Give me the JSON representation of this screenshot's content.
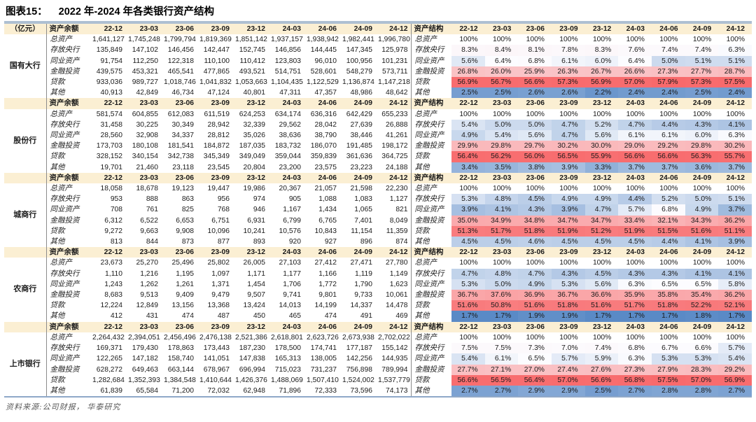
{
  "title_prefix": "图表15：",
  "title_text": "2022 年-2024 年各类银行资产结构",
  "unit_label": "（亿元）",
  "balance_header": "资产余额",
  "structure_header": "资产结构",
  "periods": [
    "22-12",
    "23-03",
    "23-06",
    "23-09",
    "23-12",
    "24-03",
    "24-06",
    "24-09",
    "24-12"
  ],
  "row_labels": [
    "总资产",
    "存放央行",
    "同业资产",
    "金融投资",
    "贷款",
    "其他"
  ],
  "footer": "资料来源:公司财报， 华泰研究",
  "colors": {
    "heat_min_blue": "#5A8AC6",
    "heat_mid_white": "#FCFCFF",
    "heat_max_red": "#F8696B",
    "header_bg": "#FBEFD3",
    "title_bar": "#AEC0D2",
    "bottom_line": "#8FA8C8"
  },
  "groups": [
    {
      "name": "国有大行",
      "balances": [
        [
          "1,641,127",
          "1,745,248",
          "1,799,794",
          "1,819,369",
          "1,851,142",
          "1,937,157",
          "1,938,942",
          "1,982,441",
          "1,996,780"
        ],
        [
          "135,849",
          "147,102",
          "146,456",
          "142,447",
          "152,745",
          "146,856",
          "144,445",
          "147,345",
          "125,978"
        ],
        [
          "91,754",
          "112,250",
          "122,318",
          "110,100",
          "110,412",
          "123,803",
          "96,010",
          "100,956",
          "101,231"
        ],
        [
          "439,575",
          "453,321",
          "465,541",
          "477,865",
          "493,521",
          "514,751",
          "528,601",
          "548,279",
          "573,711"
        ],
        [
          "933,036",
          "989,727",
          "1,018,746",
          "1,041,832",
          "1,053,663",
          "1,104,435",
          "1,122,529",
          "1,136,874",
          "1,147,218"
        ],
        [
          "40,913",
          "42,849",
          "46,734",
          "47,124",
          "40,801",
          "47,311",
          "47,357",
          "48,986",
          "48,642"
        ]
      ],
      "structure": [
        [
          100,
          100,
          100,
          100,
          100,
          100,
          100,
          100,
          100
        ],
        [
          8.3,
          8.4,
          8.1,
          7.8,
          8.3,
          7.6,
          7.4,
          7.4,
          6.3
        ],
        [
          5.6,
          6.4,
          6.8,
          6.1,
          6.0,
          6.4,
          5.0,
          5.1,
          5.1
        ],
        [
          26.8,
          26.0,
          25.9,
          26.3,
          26.7,
          26.6,
          27.3,
          27.7,
          28.7
        ],
        [
          56.9,
          56.7,
          56.6,
          57.3,
          56.9,
          57.0,
          57.9,
          57.3,
          57.5
        ],
        [
          2.5,
          2.5,
          2.6,
          2.6,
          2.2,
          2.4,
          2.4,
          2.5,
          2.4
        ]
      ]
    },
    {
      "name": "股份行",
      "balances": [
        [
          "581,574",
          "604,855",
          "612,083",
          "611,519",
          "624,253",
          "634,174",
          "636,316",
          "642,429",
          "655,233"
        ],
        [
          "31,458",
          "30,225",
          "30,349",
          "28,942",
          "32,339",
          "29,562",
          "28,042",
          "27,639",
          "26,888"
        ],
        [
          "28,560",
          "32,908",
          "34,337",
          "28,812",
          "35,026",
          "38,636",
          "38,790",
          "38,446",
          "41,261"
        ],
        [
          "173,703",
          "180,108",
          "181,541",
          "184,872",
          "187,035",
          "183,732",
          "186,070",
          "191,485",
          "198,172"
        ],
        [
          "328,152",
          "340,154",
          "342,738",
          "345,349",
          "349,049",
          "359,044",
          "359,839",
          "361,636",
          "364,725"
        ],
        [
          "19,701",
          "21,460",
          "23,118",
          "23,545",
          "20,804",
          "23,200",
          "23,575",
          "23,223",
          "24,188"
        ]
      ],
      "structure": [
        [
          100,
          100,
          100,
          100,
          100,
          100,
          100,
          100,
          100
        ],
        [
          5.4,
          5.0,
          5.0,
          4.7,
          5.2,
          4.7,
          4.4,
          4.3,
          4.1
        ],
        [
          4.9,
          5.4,
          5.6,
          4.7,
          5.6,
          6.1,
          6.1,
          6.0,
          6.3
        ],
        [
          29.9,
          29.8,
          29.7,
          30.2,
          30.0,
          29.0,
          29.2,
          29.8,
          30.2
        ],
        [
          56.4,
          56.2,
          56.0,
          56.5,
          55.9,
          56.6,
          56.6,
          56.3,
          55.7
        ],
        [
          3.4,
          3.5,
          3.8,
          3.9,
          3.3,
          3.7,
          3.7,
          3.6,
          3.7
        ]
      ]
    },
    {
      "name": "城商行",
      "balances": [
        [
          "18,058",
          "18,678",
          "19,123",
          "19,447",
          "19,986",
          "20,367",
          "21,057",
          "21,598",
          "22,230"
        ],
        [
          "953",
          "888",
          "863",
          "956",
          "974",
          "905",
          "1,088",
          "1,083",
          "1,127"
        ],
        [
          "708",
          "761",
          "825",
          "768",
          "946",
          "1,167",
          "1,434",
          "1,065",
          "821"
        ],
        [
          "6,312",
          "6,522",
          "6,653",
          "6,751",
          "6,931",
          "6,799",
          "6,765",
          "7,401",
          "8,049"
        ],
        [
          "9,272",
          "9,663",
          "9,908",
          "10,096",
          "10,241",
          "10,576",
          "10,843",
          "11,154",
          "11,359"
        ],
        [
          "813",
          "844",
          "873",
          "877",
          "893",
          "920",
          "927",
          "896",
          "874"
        ]
      ],
      "structure": [
        [
          100,
          100,
          100,
          100,
          100,
          100,
          100,
          100,
          100
        ],
        [
          5.3,
          4.8,
          4.5,
          4.9,
          4.9,
          4.4,
          5.2,
          5.0,
          5.1
        ],
        [
          3.9,
          4.1,
          4.3,
          3.9,
          4.7,
          5.7,
          6.8,
          4.9,
          3.7
        ],
        [
          35.0,
          34.9,
          34.8,
          34.7,
          34.7,
          33.4,
          32.1,
          34.3,
          36.2
        ],
        [
          51.3,
          51.7,
          51.8,
          51.9,
          51.2,
          51.9,
          51.5,
          51.6,
          51.1
        ],
        [
          4.5,
          4.5,
          4.6,
          4.5,
          4.5,
          4.5,
          4.4,
          4.1,
          3.9
        ]
      ]
    },
    {
      "name": "农商行",
      "balances": [
        [
          "23,673",
          "25,270",
          "25,496",
          "25,802",
          "26,005",
          "27,103",
          "27,412",
          "27,471",
          "27,780"
        ],
        [
          "1,110",
          "1,216",
          "1,195",
          "1,097",
          "1,171",
          "1,177",
          "1,166",
          "1,119",
          "1,149"
        ],
        [
          "1,243",
          "1,262",
          "1,261",
          "1,371",
          "1,454",
          "1,706",
          "1,772",
          "1,790",
          "1,623"
        ],
        [
          "8,683",
          "9,513",
          "9,409",
          "9,479",
          "9,507",
          "9,741",
          "9,801",
          "9,733",
          "10,061"
        ],
        [
          "12,224",
          "12,849",
          "13,156",
          "13,368",
          "13,424",
          "14,013",
          "14,199",
          "14,337",
          "14,478"
        ],
        [
          "412",
          "431",
          "474",
          "487",
          "450",
          "465",
          "474",
          "491",
          "469"
        ]
      ],
      "structure": [
        [
          100,
          100,
          100,
          100,
          100,
          100,
          100,
          100,
          100
        ],
        [
          4.7,
          4.8,
          4.7,
          4.3,
          4.5,
          4.3,
          4.3,
          4.1,
          4.1
        ],
        [
          5.3,
          5.0,
          4.9,
          5.3,
          5.6,
          6.3,
          6.5,
          6.5,
          5.8
        ],
        [
          36.7,
          37.6,
          36.9,
          36.7,
          36.6,
          35.9,
          35.8,
          35.4,
          36.2
        ],
        [
          51.6,
          50.8,
          51.6,
          51.8,
          51.6,
          51.7,
          51.8,
          52.2,
          52.1
        ],
        [
          1.7,
          1.7,
          1.9,
          1.9,
          1.7,
          1.7,
          1.7,
          1.8,
          1.7
        ]
      ]
    },
    {
      "name": "上市银行",
      "balances": [
        [
          "2,264,432",
          "2,394,051",
          "2,456,496",
          "2,476,138",
          "2,521,386",
          "2,618,801",
          "2,623,726",
          "2,673,938",
          "2,702,022"
        ],
        [
          "169,371",
          "179,430",
          "178,863",
          "173,443",
          "187,230",
          "178,500",
          "174,741",
          "177,187",
          "155,142"
        ],
        [
          "122,265",
          "147,182",
          "158,740",
          "141,051",
          "147,838",
          "165,313",
          "138,005",
          "142,256",
          "144,935"
        ],
        [
          "628,272",
          "649,463",
          "663,144",
          "678,967",
          "696,994",
          "715,023",
          "731,237",
          "756,898",
          "789,994"
        ],
        [
          "1,282,684",
          "1,352,393",
          "1,384,548",
          "1,410,644",
          "1,426,376",
          "1,488,069",
          "1,507,410",
          "1,524,002",
          "1,537,779"
        ],
        [
          "61,839",
          "65,584",
          "71,200",
          "72,032",
          "62,948",
          "71,896",
          "72,333",
          "73,596",
          "74,173"
        ]
      ],
      "structure": [
        [
          100,
          100,
          100,
          100,
          100,
          100,
          100,
          100,
          100
        ],
        [
          7.5,
          7.5,
          7.3,
          7.0,
          7.4,
          6.8,
          6.7,
          6.6,
          5.7
        ],
        [
          5.4,
          6.1,
          6.5,
          5.7,
          5.9,
          6.3,
          5.3,
          5.3,
          5.4
        ],
        [
          27.7,
          27.1,
          27.0,
          27.4,
          27.6,
          27.3,
          27.9,
          28.3,
          29.2
        ],
        [
          56.6,
          56.5,
          56.4,
          57.0,
          56.6,
          56.8,
          57.5,
          57.0,
          56.9
        ],
        [
          2.7,
          2.7,
          2.9,
          2.9,
          2.5,
          2.7,
          2.8,
          2.8,
          2.7
        ]
      ]
    }
  ]
}
